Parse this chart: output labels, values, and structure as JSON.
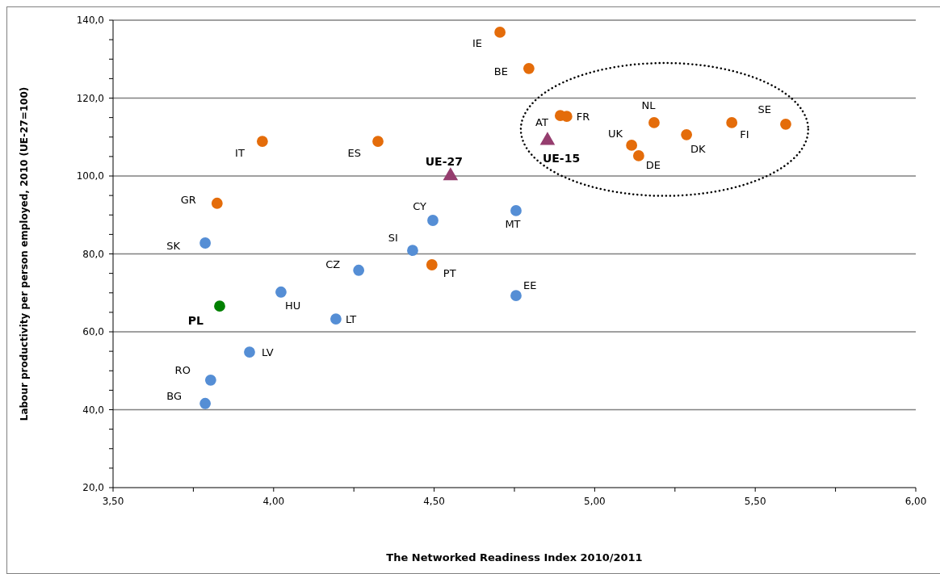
{
  "chart_data": {
    "type": "scatter",
    "xlabel": "The Networked Readiness Index 2010/2011",
    "ylabel": "Labour productivity per person employed, 2010 (UE-27=100)",
    "xlim": [
      3.5,
      6.0
    ],
    "xticks": [
      {
        "value": 3.5,
        "label": "3,50"
      },
      {
        "value": 3.75,
        "label": null
      },
      {
        "value": 4.0,
        "label": "4,00"
      },
      {
        "value": 4.25,
        "label": null
      },
      {
        "value": 4.5,
        "label": "4,50"
      },
      {
        "value": 4.75,
        "label": null
      },
      {
        "value": 5.0,
        "label": "5,00"
      },
      {
        "value": 5.25,
        "label": null
      },
      {
        "value": 5.5,
        "label": "5,50"
      },
      {
        "value": 5.75,
        "label": null
      },
      {
        "value": 6.0,
        "label": "6,00"
      }
    ],
    "ylim": [
      20,
      140
    ],
    "yticks": [
      {
        "value": 20,
        "label": "20,0"
      },
      {
        "value": 25,
        "label": null
      },
      {
        "value": 30,
        "label": null
      },
      {
        "value": 35,
        "label": null
      },
      {
        "value": 40,
        "label": "40,0"
      },
      {
        "value": 45,
        "label": null
      },
      {
        "value": 50,
        "label": null
      },
      {
        "value": 55,
        "label": null
      },
      {
        "value": 60,
        "label": "60,0"
      },
      {
        "value": 65,
        "label": null
      },
      {
        "value": 70,
        "label": null
      },
      {
        "value": 75,
        "label": null
      },
      {
        "value": 80,
        "label": "80,0"
      },
      {
        "value": 85,
        "label": null
      },
      {
        "value": 90,
        "label": null
      },
      {
        "value": 95,
        "label": null
      },
      {
        "value": 100,
        "label": "100,0"
      },
      {
        "value": 105,
        "label": null
      },
      {
        "value": 110,
        "label": null
      },
      {
        "value": 115,
        "label": null
      },
      {
        "value": 120,
        "label": "120,0"
      },
      {
        "value": 125,
        "label": null
      },
      {
        "value": 130,
        "label": null
      },
      {
        "value": 135,
        "label": null
      },
      {
        "value": 140,
        "label": "140,0"
      }
    ],
    "grid": "y",
    "legend": false,
    "series": [
      {
        "color": "#e46c0a",
        "marker": "circle",
        "x": [
          4.705,
          4.795,
          3.965,
          4.325,
          3.824,
          4.493,
          4.893,
          4.913,
          5.185,
          5.115,
          5.137,
          5.286,
          5.427,
          5.595
        ],
        "values": [
          136.9,
          127.6,
          108.9,
          108.9,
          93.0,
          77.2,
          115.5,
          115.3,
          113.7,
          107.9,
          105.2,
          110.6,
          113.7,
          113.3
        ]
      },
      {
        "color": "#558ed5",
        "marker": "circle",
        "x": [
          3.787,
          4.496,
          4.433,
          4.755,
          4.265,
          4.023,
          4.194,
          4.755,
          3.925,
          3.804,
          3.787
        ],
        "values": [
          82.8,
          88.6,
          80.9,
          91.1,
          75.8,
          70.2,
          63.3,
          69.3,
          54.8,
          47.6,
          41.6
        ]
      },
      {
        "color": "#008000",
        "marker": "circle",
        "x": [
          3.832
        ],
        "values": [
          66.6
        ]
      },
      {
        "color": "#953d6e",
        "marker": "triangle",
        "x": [
          4.551,
          4.853
        ],
        "values": [
          100.0,
          109.1
        ]
      }
    ],
    "annotations": [
      {
        "text": "IE",
        "x": 4.705,
        "y": 136.9
      },
      {
        "text": "BE",
        "x": 4.795,
        "y": 127.6
      },
      {
        "text": "IT",
        "x": 3.965,
        "y": 108.9
      },
      {
        "text": "ES",
        "x": 4.325,
        "y": 108.9
      },
      {
        "text": "UE-27",
        "x": 4.551,
        "y": 100.0
      },
      {
        "text": "GR",
        "x": 3.824,
        "y": 93.0
      },
      {
        "text": "SK",
        "x": 3.787,
        "y": 82.8
      },
      {
        "text": "CY",
        "x": 4.496,
        "y": 88.6
      },
      {
        "text": "SI",
        "x": 4.433,
        "y": 80.9
      },
      {
        "text": "MT",
        "x": 4.755,
        "y": 91.1
      },
      {
        "text": "CZ",
        "x": 4.265,
        "y": 75.8
      },
      {
        "text": "PT",
        "x": 4.493,
        "y": 77.2
      },
      {
        "text": "HU",
        "x": 4.023,
        "y": 70.2
      },
      {
        "text": "PL",
        "x": 3.832,
        "y": 66.6
      },
      {
        "text": "LT",
        "x": 4.194,
        "y": 63.3
      },
      {
        "text": "EE",
        "x": 4.755,
        "y": 69.3
      },
      {
        "text": "LV",
        "x": 3.925,
        "y": 54.8
      },
      {
        "text": "RO",
        "x": 3.804,
        "y": 47.6
      },
      {
        "text": "BG",
        "x": 3.787,
        "y": 41.6
      },
      {
        "text": "AT",
        "x": 4.893,
        "y": 115.5
      },
      {
        "text": "FR",
        "x": 4.913,
        "y": 115.3
      },
      {
        "text": "UE-15",
        "x": 4.853,
        "y": 109.1
      },
      {
        "text": "NL",
        "x": 5.185,
        "y": 113.7
      },
      {
        "text": "UK",
        "x": 5.115,
        "y": 107.9
      },
      {
        "text": "DE",
        "x": 5.137,
        "y": 105.2
      },
      {
        "text": "DK",
        "x": 5.286,
        "y": 110.6
      },
      {
        "text": "FI",
        "x": 5.427,
        "y": 113.7
      },
      {
        "text": "SE",
        "x": 5.595,
        "y": 113.3
      }
    ]
  }
}
